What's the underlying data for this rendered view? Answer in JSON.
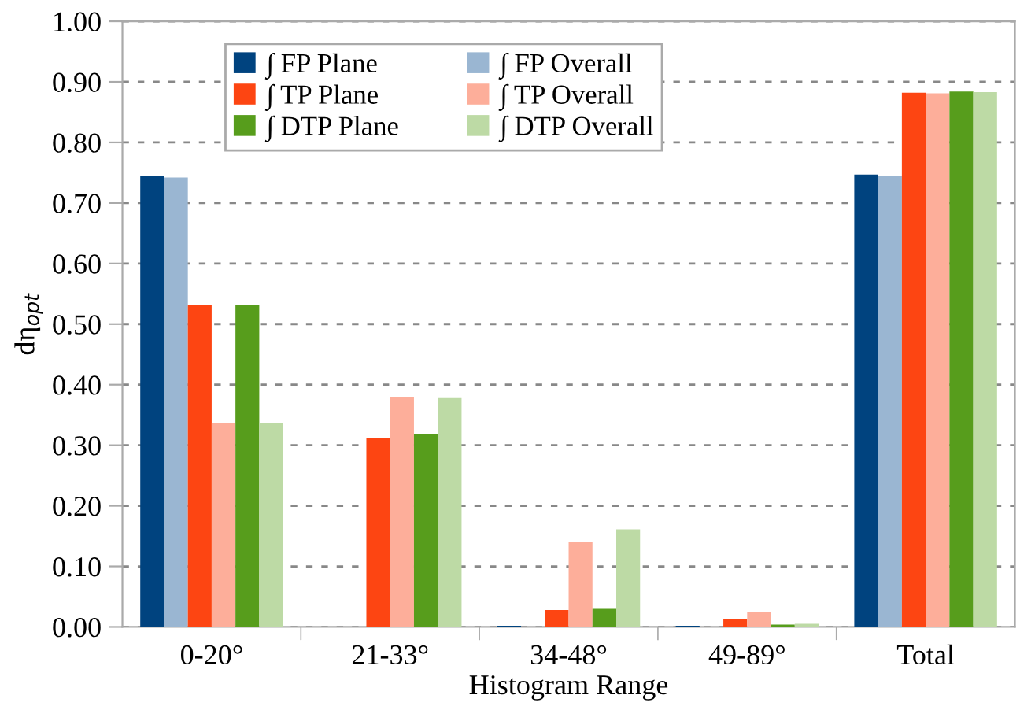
{
  "chart_data": {
    "type": "bar",
    "xlabel": "Histogram Range",
    "ylabel": "dη$_{opt}$",
    "categories": [
      "0-20°",
      "21-33°",
      "34-48°",
      "49-89°",
      "Total"
    ],
    "series": [
      {
        "name": "∫ FP Plane",
        "color": "#00437f",
        "values": [
          0.745,
          0,
          0.002,
          0.002,
          0.747
        ]
      },
      {
        "name": "∫ FP Overall",
        "color": "#9ab6d2",
        "values": [
          0.742,
          0,
          0,
          null,
          0.745
        ]
      },
      {
        "name": "∫ TP Plane",
        "color": "#fd4512",
        "values": [
          0.531,
          0.312,
          0.028,
          0.013,
          0.882
        ]
      },
      {
        "name": "∫ TP Overall",
        "color": "#fdae9a",
        "values": [
          0.336,
          0.38,
          0.141,
          0.025,
          0.881
        ]
      },
      {
        "name": "∫ DTP Plane",
        "color": "#579d1c",
        "values": [
          0.532,
          0.319,
          0.03,
          0.004,
          0.884
        ]
      },
      {
        "name": "∫ DTP Overall",
        "color": "#bddaa5",
        "values": [
          0.336,
          0.379,
          0.161,
          0.005,
          0.883
        ]
      }
    ],
    "ylim": [
      0,
      1
    ],
    "yticks": [
      {
        "value": 0,
        "label": "0.00"
      },
      {
        "value": 0.1,
        "label": "0.10"
      },
      {
        "value": 0.2,
        "label": "0.20"
      },
      {
        "value": 0.3,
        "label": "0.30"
      },
      {
        "value": 0.4,
        "label": "0.40"
      },
      {
        "value": 0.5,
        "label": "0.50"
      },
      {
        "value": 0.6,
        "label": "0.60"
      },
      {
        "value": 0.7,
        "label": "0.70"
      },
      {
        "value": 0.8,
        "label": "0.80"
      },
      {
        "value": 0.9,
        "label": "0.90"
      },
      {
        "value": 1,
        "label": "1.00"
      }
    ],
    "grid": "y",
    "legend": "top"
  }
}
